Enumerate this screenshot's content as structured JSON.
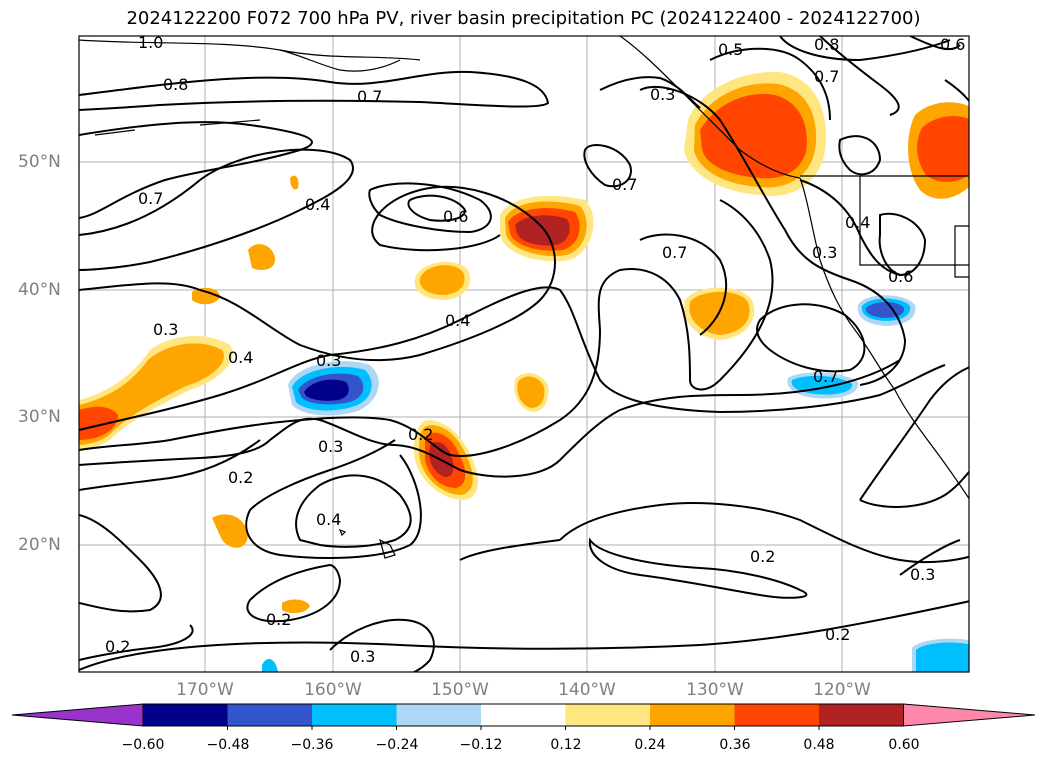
{
  "title": "2024122200 F072 700 hPa PV, river basin precipitation PC (2024122400 - 2024122700)",
  "lat_labels": [
    "50°N",
    "40°N",
    "30°N",
    "20°N"
  ],
  "lon_labels": [
    "170°W",
    "160°W",
    "150°W",
    "140°W",
    "130°W",
    "120°W"
  ],
  "contour_labels": [
    "1.0",
    "0.8",
    "0.7",
    "0.5",
    "0.3",
    "0.8",
    "0.7",
    "0.6",
    "0.7",
    "0.4",
    "0.7",
    "0.6",
    "0.7",
    "0.4",
    "0.3",
    "0.6",
    "0.3",
    "0.4",
    "0.3",
    "0.4",
    "0.7",
    "0.2",
    "0.3",
    "0.2",
    "0.4",
    "0.2",
    "0.2",
    "0.3",
    "0.2",
    "0.2",
    "0.3"
  ],
  "colorbar": {
    "ticks": [
      "−0.60",
      "−0.48",
      "−0.36",
      "−0.24",
      "−0.12",
      "0.12",
      "0.24",
      "0.36",
      "0.48",
      "0.60"
    ],
    "colors": [
      "#9933cc",
      "#00008b",
      "#3355cc",
      "#00bfff",
      "#add8f5",
      "#ffffff",
      "#ffe680",
      "#ffa500",
      "#ff4500",
      "#b22222",
      "#ff88aa"
    ]
  }
}
